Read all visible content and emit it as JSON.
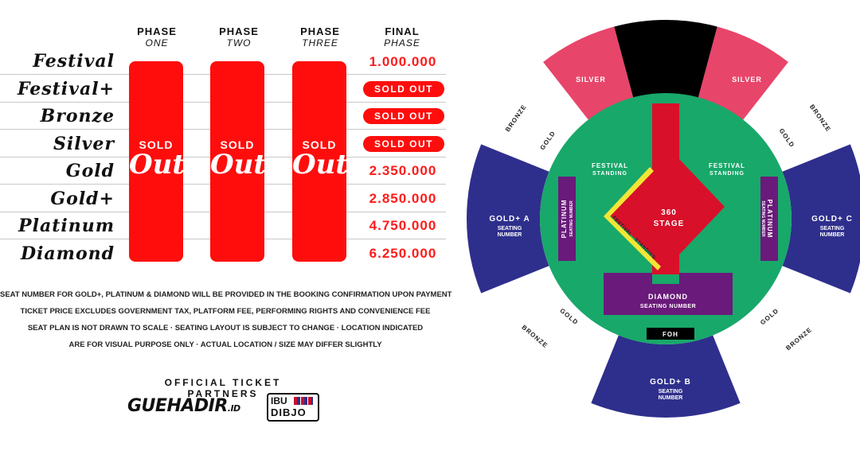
{
  "phases": [
    {
      "line1": "PHASE",
      "line2": "ONE"
    },
    {
      "line1": "PHASE",
      "line2": "TWO"
    },
    {
      "line1": "PHASE",
      "line2": "THREE"
    },
    {
      "line1": "FINAL",
      "line2": "PHASE"
    }
  ],
  "sold_out_big": {
    "line1": "SOLD",
    "line2": "Out"
  },
  "categories": [
    {
      "name": "Festival",
      "final": "1.000.000",
      "sold_out": false
    },
    {
      "name": "Festival+",
      "final": "SOLD OUT",
      "sold_out": true
    },
    {
      "name": "Bronze",
      "final": "SOLD OUT",
      "sold_out": true
    },
    {
      "name": "Silver",
      "final": "SOLD OUT",
      "sold_out": true
    },
    {
      "name": "Gold",
      "final": "2.350.000",
      "sold_out": false
    },
    {
      "name": "Gold+",
      "final": "2.850.000",
      "sold_out": false
    },
    {
      "name": "Platinum",
      "final": "4.750.000",
      "sold_out": false
    },
    {
      "name": "Diamond",
      "final": "6.250.000",
      "sold_out": false
    }
  ],
  "notes": [
    "SEAT NUMBER FOR GOLD+, PLATINUM & DIAMOND WILL BE PROVIDED IN THE BOOKING CONFIRMATION UPON PAYMENT",
    "TICKET PRICE EXCLUDES GOVERNMENT TAX, PLATFORM FEE, PERFORMING RIGHTS AND CONVENIENCE FEE",
    "SEAT PLAN IS NOT DRAWN TO SCALE · SEATING LAYOUT IS SUBJECT TO CHANGE · LOCATION INDICATED",
    "ARE FOR VISUAL PURPOSE ONLY · ACTUAL LOCATION / SIZE MAY DIFFER SLIGHTLY"
  ],
  "partners": {
    "title": "OFFICIAL TICKET PARTNERS",
    "logo1": "GUEHADIR",
    "logo1_suffix": ".ID",
    "logo2_line1": "IBU",
    "logo2_line2": "DIBJO"
  },
  "seat_map": {
    "silver": "SILVER",
    "bronze": "BRONZE",
    "gold": "GOLD",
    "gold_plus_a": "GOLD+ A",
    "gold_plus_b": "GOLD+ B",
    "gold_plus_c": "GOLD+ C",
    "seating": "SEATING",
    "number": "NUMBER",
    "seating_number": "SEATING NUMBER",
    "festival": "FESTIVAL",
    "standing": "STANDING",
    "festival_standing": "FESTIVAL · STANDING",
    "platinum": "PLATINUM",
    "diamond": "DIAMOND",
    "stage_line1": "360",
    "stage_line2": "STAGE",
    "foh": "FOH"
  },
  "colors": {
    "red": "#ff0d0d",
    "yellow": "#dde53a",
    "cyan": "#22f0ee",
    "green": "#18a86a",
    "navy": "#2e2f8c",
    "pink": "#e8456a",
    "purple": "#6a1a7a",
    "stage": "#d8102a"
  }
}
